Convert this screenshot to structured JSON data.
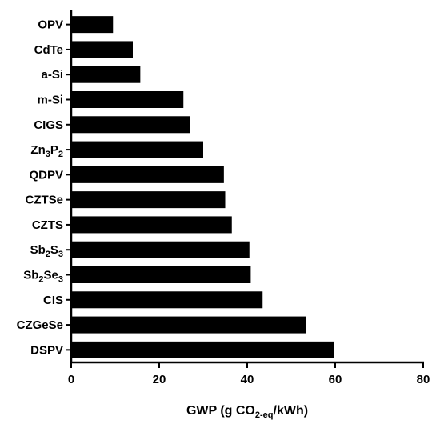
{
  "chart_data": {
    "type": "bar",
    "orientation": "horizontal",
    "categories": [
      {
        "base": "OPV",
        "sub": ""
      },
      {
        "base": "CdTe",
        "sub": ""
      },
      {
        "base": "a-Si",
        "sub": ""
      },
      {
        "base": "m-Si",
        "sub": ""
      },
      {
        "base": "CIGS",
        "sub": ""
      },
      {
        "base": "Zn3P2",
        "parts": [
          {
            "t": "Zn",
            "s": false
          },
          {
            "t": "3",
            "s": true
          },
          {
            "t": "P",
            "s": false
          },
          {
            "t": "2",
            "s": true
          }
        ]
      },
      {
        "base": "QDPV",
        "sub": ""
      },
      {
        "base": "CZTSe",
        "sub": ""
      },
      {
        "base": "CZTS",
        "sub": ""
      },
      {
        "base": "Sb2S3",
        "parts": [
          {
            "t": "Sb",
            "s": false
          },
          {
            "t": "2",
            "s": true
          },
          {
            "t": "S",
            "s": false
          },
          {
            "t": "3",
            "s": true
          }
        ]
      },
      {
        "base": "Sb2Se3",
        "parts": [
          {
            "t": "Sb",
            "s": false
          },
          {
            "t": "2",
            "s": true
          },
          {
            "t": "Se",
            "s": false
          },
          {
            "t": "3",
            "s": true
          }
        ]
      },
      {
        "base": "CIS",
        "sub": ""
      },
      {
        "base": "CZGeSe",
        "sub": ""
      },
      {
        "base": "DSPV",
        "sub": ""
      }
    ],
    "values": [
      9.5,
      14,
      15.7,
      25.5,
      27,
      30,
      34.7,
      35,
      36.5,
      40.5,
      40.8,
      43.5,
      53.3,
      59.7
    ],
    "xlabel": {
      "main": "GWP (g CO",
      "sub": "2-eq",
      "tail": "/kWh)"
    },
    "ylabel": "",
    "xlim": [
      0,
      80
    ],
    "xticks": [
      0,
      20,
      40,
      60,
      80
    ],
    "bar_color": "#000000",
    "grid": false
  }
}
